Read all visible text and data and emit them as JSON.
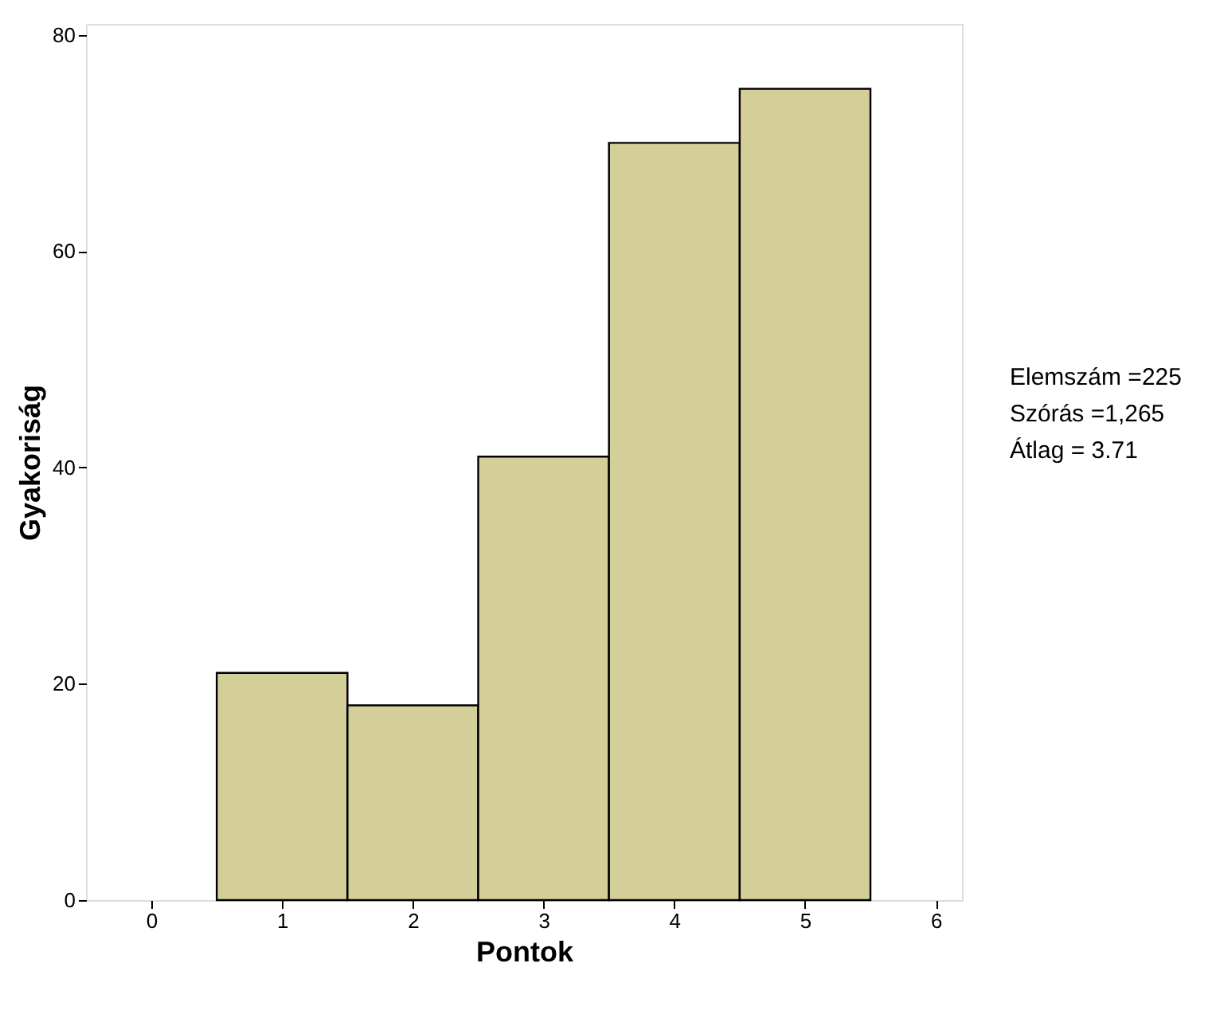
{
  "chart_data": {
    "type": "histogram",
    "bins": [
      0.5,
      1.5,
      2.5,
      3.5,
      4.5,
      5.5
    ],
    "values": [
      21,
      18,
      41,
      70,
      75
    ],
    "color": "#d4cf98",
    "xlim": [
      -0.5,
      6.2
    ],
    "xticks": [
      0,
      1,
      2,
      3,
      4,
      5,
      6
    ],
    "ylim": [
      0,
      81
    ],
    "yticks": [
      0,
      20,
      40,
      60,
      80
    ],
    "xlabel": "Pontok",
    "ylabel": "Gyakoriság",
    "annotations": [
      "Elemszám =225",
      "Szórás  =1,265",
      "Átlag = 3.71"
    ]
  }
}
